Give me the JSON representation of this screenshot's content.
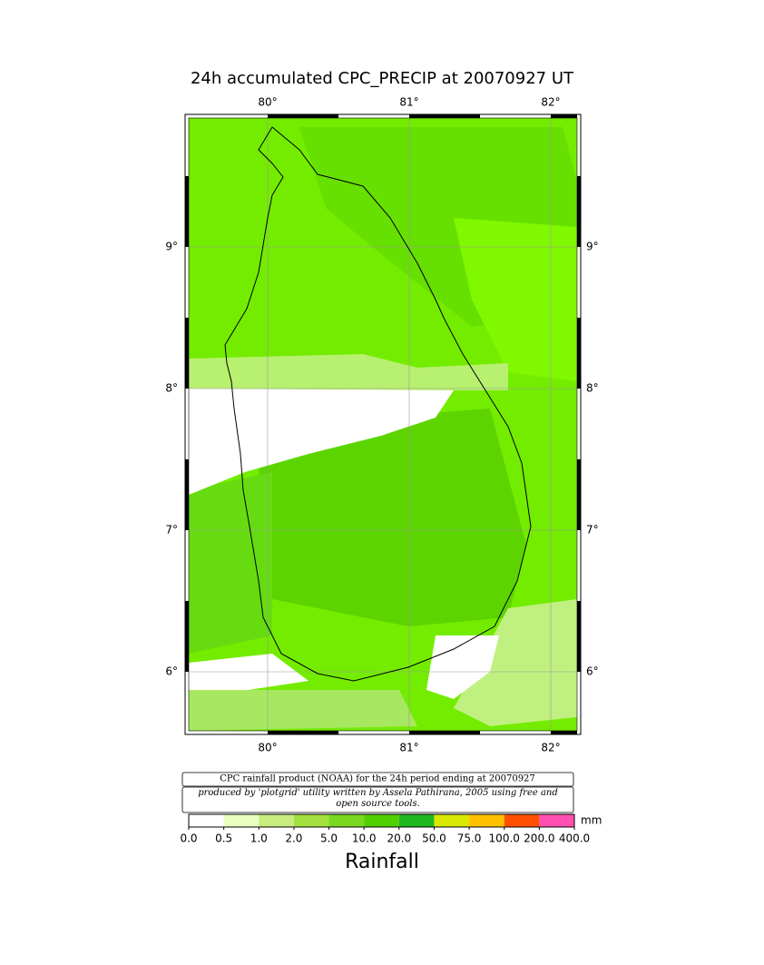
{
  "title": "24h accumulated CPC_PRECIP  at 20070927 UT",
  "lon_labels": [
    "80°",
    "81°",
    "82°"
  ],
  "lat_labels": [
    "9°",
    "8°",
    "7°",
    "6°"
  ],
  "credit": {
    "line1": "CPC rainfall product (NOAA) for the 24h period ending at 20070927",
    "line2": "produced by 'plotgrid' utility written by Assela Pathirana, 2005 using free and open source tools."
  },
  "colorbar": {
    "labels": [
      "0.0",
      "0.5",
      "1.0",
      "2.0",
      "5.0",
      "10.0",
      "20.0",
      "50.0",
      "75.0",
      "100.0",
      "200.0",
      "400.0"
    ],
    "colors": [
      "#ffffff",
      "#e8ffc0",
      "#c8ec80",
      "#a4e040",
      "#7ad820",
      "#50d000",
      "#20b820",
      "#d8e800",
      "#ffc000",
      "#ff5000",
      "#ff50b0"
    ],
    "unit": "mm",
    "title": "Rainfall"
  }
}
